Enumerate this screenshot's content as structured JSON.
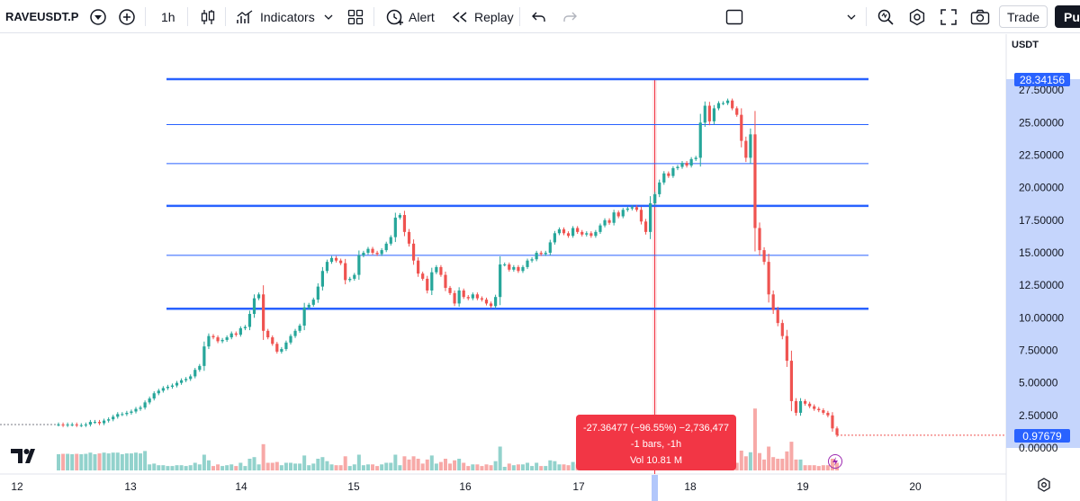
{
  "toolbar": {
    "symbol": "RAVEUSDT.P",
    "interval": "1h",
    "indicators_label": "Indicators",
    "alert_label": "Alert",
    "replay_label": "Replay",
    "trade_label": "Trade",
    "publish_label": "Pul"
  },
  "price_axis": {
    "currency": "USDT",
    "tick_labels": [
      "27.50000",
      "25.00000",
      "22.50000",
      "20.00000",
      "17.50000",
      "15.00000",
      "12.50000",
      "10.00000",
      "7.50000",
      "5.00000",
      "2.50000",
      "0.00000"
    ],
    "highlight_top": "28.34156",
    "current_price": "0.97679"
  },
  "time_axis": {
    "labels": [
      "12",
      "13",
      "14",
      "15",
      "16",
      "17",
      "18",
      "19",
      "20"
    ]
  },
  "measure_tooltip": {
    "line1": "-27.36477 (−96.55%) −2,736,477",
    "line2": "-1 bars, -1h",
    "line3": "Vol 10.81 M"
  },
  "colors": {
    "up": "#26a69a",
    "down": "#ef5350",
    "level_line": "#2962ff",
    "measure": "#f23645",
    "axis_highlight": "#b2c7fb"
  },
  "chart_data": {
    "type": "candlestick",
    "x": [
      "12",
      "13",
      "14",
      "15",
      "16",
      "17",
      "18",
      "19",
      "20"
    ],
    "ylim": [
      0,
      28.7
    ],
    "horizontal_levels": [
      28.34156,
      24.85,
      21.85,
      18.6,
      14.8,
      10.7
    ],
    "close_series": [
      1.8,
      1.75,
      1.8,
      1.8,
      1.75,
      1.75,
      1.8,
      2.0,
      2.0,
      1.9,
      2.1,
      2.2,
      2.4,
      2.6,
      2.6,
      2.7,
      2.8,
      3.0,
      3.1,
      3.5,
      3.8,
      4.2,
      4.4,
      4.6,
      4.7,
      4.8,
      5.0,
      5.2,
      5.3,
      5.5,
      6.0,
      6.3,
      7.8,
      8.6,
      8.5,
      8.2,
      8.3,
      8.5,
      8.8,
      8.7,
      9.2,
      9.3,
      10.3,
      11.5,
      11.8,
      9.0,
      8.5,
      8.0,
      7.4,
      7.6,
      8.1,
      8.6,
      9.0,
      9.4,
      10.8,
      11.0,
      11.4,
      12.4,
      13.6,
      14.3,
      14.6,
      14.4,
      14.2,
      12.9,
      13.0,
      13.3,
      14.8,
      15.0,
      15.3,
      15.0,
      14.9,
      15.2,
      15.7,
      16.2,
      17.7,
      17.9,
      16.6,
      15.7,
      14.4,
      13.4,
      13.0,
      12.1,
      13.5,
      13.9,
      13.3,
      12.3,
      11.9,
      11.1,
      12.1,
      11.6,
      11.5,
      11.8,
      11.5,
      11.4,
      11.1,
      10.9,
      11.6,
      14.1,
      14.1,
      13.7,
      13.9,
      13.6,
      13.9,
      14.4,
      14.5,
      15.0,
      14.9,
      15.0,
      15.8,
      16.5,
      16.8,
      16.5,
      16.3,
      16.9,
      16.6,
      16.4,
      16.5,
      16.3,
      16.6,
      17.1,
      17.5,
      17.3,
      18.1,
      17.8,
      18.3,
      18.4,
      18.5,
      18.3,
      17.4,
      16.6,
      18.8,
      19.5,
      20.4,
      21.1,
      20.9,
      21.5,
      21.6,
      21.9,
      21.7,
      22.2,
      22.3,
      25.0,
      26.3,
      25.1,
      26.1,
      26.5,
      26.5,
      26.7,
      26.1,
      25.6,
      23.6,
      22.3,
      24.1,
      16.9,
      15.2,
      14.3,
      11.8,
      10.6,
      9.6,
      8.6,
      6.7,
      3.6,
      2.7,
      3.6,
      3.4,
      3.2,
      3.0,
      2.9,
      2.7,
      2.5,
      1.5,
      1.0
    ]
  }
}
